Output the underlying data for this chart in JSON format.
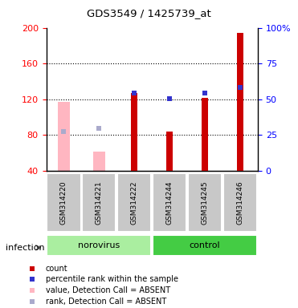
{
  "title": "GDS3549 / 1425739_at",
  "samples": [
    "GSM314220",
    "GSM314221",
    "GSM314222",
    "GSM314244",
    "GSM314245",
    "GSM314246"
  ],
  "ylim_left": [
    40,
    200
  ],
  "ylim_right": [
    0,
    100
  ],
  "yticks_left": [
    40,
    80,
    120,
    160,
    200
  ],
  "yticks_right": [
    0,
    25,
    50,
    75,
    100
  ],
  "ytick_right_labels": [
    "0",
    "25",
    "50",
    "75",
    "100%"
  ],
  "grid_lines": [
    80,
    120,
    160
  ],
  "count_values": [
    null,
    null,
    127,
    84,
    122,
    194
  ],
  "count_color": "#CC0000",
  "count_bar_width": 0.18,
  "percentile_values": [
    null,
    null,
    127,
    121,
    127,
    133
  ],
  "percentile_color": "#3333CC",
  "absent_value_values": [
    117,
    62,
    null,
    null,
    null,
    null
  ],
  "absent_value_color": "#FFB6C1",
  "absent_value_bar_width": 0.35,
  "absent_rank_values": [
    84,
    88,
    null,
    null,
    null,
    null
  ],
  "absent_rank_color": "#AAAACC",
  "norovirus_color": "#AAEEA0",
  "control_color": "#44CC44",
  "sample_bg_color": "#C8C8C8",
  "plot_bg": "#FFFFFF",
  "legend_items": [
    {
      "label": "count",
      "color": "#CC0000"
    },
    {
      "label": "percentile rank within the sample",
      "color": "#3333CC"
    },
    {
      "label": "value, Detection Call = ABSENT",
      "color": "#FFB6C1"
    },
    {
      "label": "rank, Detection Call = ABSENT",
      "color": "#AAAACC"
    }
  ]
}
